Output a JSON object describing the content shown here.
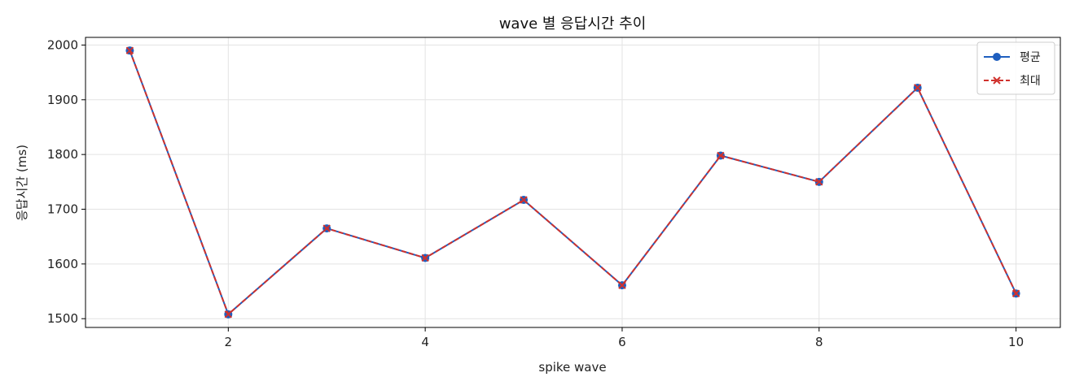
{
  "chart_data": {
    "type": "line",
    "title": "wave 별 응답시간 추이",
    "xlabel": "spike wave",
    "ylabel": "응답시간 (ms)",
    "x": [
      1,
      2,
      3,
      4,
      5,
      6,
      7,
      8,
      9,
      10
    ],
    "xlim": [
      0.55,
      10.45
    ],
    "ylim": [
      1484,
      2014
    ],
    "xticks": [
      2,
      4,
      6,
      8,
      10
    ],
    "yticks": [
      1500,
      1600,
      1700,
      1800,
      1900,
      2000
    ],
    "grid": true,
    "legend_position": "top-right",
    "series": [
      {
        "name": "평균",
        "values": [
          1990,
          1508,
          1665,
          1611,
          1717,
          1561,
          1798,
          1750,
          1922,
          1546
        ],
        "color": "#1f5fbf",
        "marker": "circle",
        "line_style": "solid"
      },
      {
        "name": "최대",
        "values": [
          1990,
          1508,
          1665,
          1611,
          1717,
          1561,
          1798,
          1750,
          1922,
          1546
        ],
        "color": "#d0312d",
        "marker": "x",
        "line_style": "dashed"
      }
    ]
  }
}
